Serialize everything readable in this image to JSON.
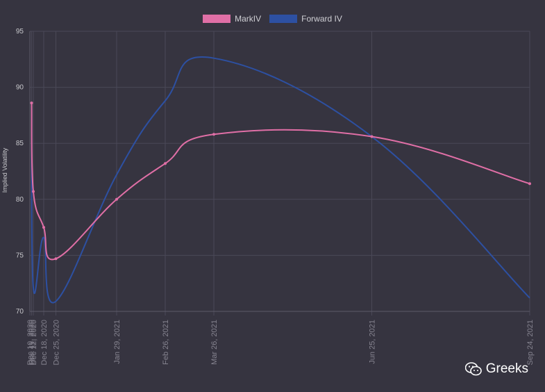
{
  "chart_data": {
    "type": "line",
    "title": "",
    "xlabel": "",
    "ylabel": "Implied Volatility",
    "ylim": [
      70,
      95
    ],
    "yticks": [
      70,
      75,
      80,
      85,
      90,
      95
    ],
    "grid": true,
    "legend_position": "top-center",
    "x_tick_labels": [
      {
        "date": "2020-12-10",
        "label": "Dec 10, 2020"
      },
      {
        "date": "2020-12-11",
        "label": "Dec 11, 2020"
      },
      {
        "date": "2020-12-12",
        "label": "Dec 12, 2020"
      },
      {
        "date": "2020-12-18",
        "label": "Dec 18, 2020"
      },
      {
        "date": "2020-12-25",
        "label": "Dec 25, 2020"
      },
      {
        "date": "2021-01-29",
        "label": "Jan 29, 2021"
      },
      {
        "date": "2021-02-26",
        "label": "Feb 26, 2021"
      },
      {
        "date": "2021-03-26",
        "label": "Mar 26, 2021"
      },
      {
        "date": "2021-06-25",
        "label": "Jun 25, 2021"
      },
      {
        "date": "2021-09-24",
        "label": "Sep 24, 2021"
      }
    ],
    "series": [
      {
        "name": "MarkIV",
        "color": "#e06fa6",
        "points": [
          {
            "x": "2020-12-11",
            "y": 88.6
          },
          {
            "x": "2020-12-12",
            "y": 80.7
          },
          {
            "x": "2020-12-18",
            "y": 77.5
          },
          {
            "x": "2020-12-25",
            "y": 74.7
          },
          {
            "x": "2021-01-29",
            "y": 80.0
          },
          {
            "x": "2021-02-26",
            "y": 83.2
          },
          {
            "x": "2021-03-26",
            "y": 85.8
          },
          {
            "x": "2021-06-25",
            "y": 85.6
          },
          {
            "x": "2021-09-24",
            "y": 81.4
          }
        ]
      },
      {
        "name": "Forward IV",
        "color": "#2d50a2",
        "points": [
          {
            "x": "2020-12-11",
            "y": 88.6
          },
          {
            "x": "2020-12-12",
            "y": 72.1
          },
          {
            "x": "2020-12-18",
            "y": 76.6
          },
          {
            "x": "2020-12-25",
            "y": 70.9
          },
          {
            "x": "2021-01-29",
            "y": 82.2
          },
          {
            "x": "2021-02-26",
            "y": 88.8
          },
          {
            "x": "2021-03-26",
            "y": 92.6
          },
          {
            "x": "2021-06-25",
            "y": 85.6
          },
          {
            "x": "2021-09-24",
            "y": 71.2
          }
        ]
      }
    ]
  },
  "legend": {
    "items": [
      {
        "label": "MarkIV",
        "color": "#e06fa6"
      },
      {
        "label": "Forward IV",
        "color": "#2d50a2"
      }
    ]
  },
  "watermark": {
    "text": "Greeks",
    "icon": "wechat-icon"
  }
}
